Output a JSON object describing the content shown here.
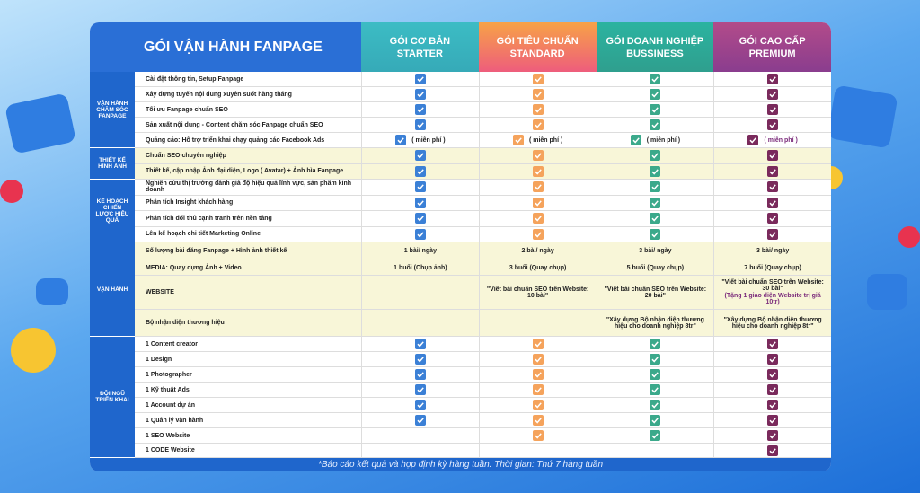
{
  "header": {
    "title": "GÓI VẬN HÀNH FANPAGE",
    "plans": [
      {
        "name": "GÓI CƠ BẢN",
        "sub": "STARTER"
      },
      {
        "name": "GÓI TIÊU CHUẨN",
        "sub": "STANDARD"
      },
      {
        "name": "GÓI DOANH NGHIỆP",
        "sub": "BUSSINESS"
      },
      {
        "name": "GÓI CAO CẤP",
        "sub": "PREMIUM"
      }
    ]
  },
  "groups": [
    {
      "label": "VẬN HÀNH CHĂM SÓC FANPAGE",
      "rows": [
        {
          "label": "Cài đặt thông tin, Setup Fanpage",
          "cells": [
            true,
            true,
            true,
            true
          ]
        },
        {
          "label": "Xây dựng tuyến nội dung xuyên suốt hàng tháng",
          "cells": [
            true,
            true,
            true,
            true
          ]
        },
        {
          "label": "Tối ưu Fanpage chuẩn SEO",
          "cells": [
            true,
            true,
            true,
            true
          ]
        },
        {
          "label": "Sản xuất nội dung - Content chăm sóc Fanpage chuẩn SEO",
          "cells": [
            true,
            true,
            true,
            true
          ]
        },
        {
          "label": "Quảng cáo: Hỗ trợ triển khai chạy quảng cáo Facebook Ads",
          "cells": [
            true,
            true,
            true,
            true
          ],
          "notes": [
            "( miễn phí )",
            "( miễn phí )",
            "( miễn phí )",
            "( miễn phí )"
          ]
        }
      ]
    },
    {
      "label": "THIẾT KẾ HÌNH ẢNH",
      "rows": [
        {
          "label": "Chuẩn SEO chuyên nghiệp",
          "cells": [
            true,
            true,
            true,
            true
          ]
        },
        {
          "label": "Thiết kế, cập nhập Ảnh đại diện, Logo ( Avatar) + Ảnh bìa Fanpage",
          "cells": [
            true,
            true,
            true,
            true
          ]
        }
      ]
    },
    {
      "label": "KẾ HOẠCH CHIẾN LƯỢC HIỆU QUẢ",
      "rows": [
        {
          "label": "Nghiên cứu thị trường đánh giá độ hiệu quả lĩnh vực, sản phẩm kinh doanh",
          "cells": [
            true,
            true,
            true,
            true
          ]
        },
        {
          "label": "Phân tích Insight khách hàng",
          "cells": [
            true,
            true,
            true,
            true
          ]
        },
        {
          "label": "Phân tích đối thủ cạnh tranh trên nền tảng",
          "cells": [
            true,
            true,
            true,
            true
          ]
        },
        {
          "label": "Lên kế hoạch chi tiết Marketing Online",
          "cells": [
            true,
            true,
            true,
            true
          ]
        }
      ]
    },
    {
      "label": "VẬN HÀNH",
      "rows": [
        {
          "label": "Số lượng bài đăng Fanpage + Hình ảnh thiết kế",
          "cells": [
            "1 bài/ ngày",
            "2 bài/ ngày",
            "3 bài/ ngày",
            "3 bài/ ngày"
          ]
        },
        {
          "label": "MEDIA: Quay dựng Ảnh + Video",
          "cells": [
            "1 buổi (Chụp ảnh)",
            "3 buổi (Quay chụp)",
            "5 buổi (Quay chụp)",
            "7 buổi (Quay chụp)"
          ]
        },
        {
          "label": "WEBSITE",
          "cells": [
            null,
            "\"Viết bài chuẩn SEO trên Website: 10 bài\"",
            "\"Viết bài chuẩn SEO trên Website: 20 bài\"",
            "\"Viết bài chuẩn SEO trên Website: 30 bài\""
          ],
          "notes": [
            null,
            null,
            null,
            "(Tặng 1 giao diện Website trị giá 10tr)"
          ]
        },
        {
          "label": "Bộ nhận diện thương hiệu",
          "cells": [
            null,
            null,
            "\"Xây dựng Bộ nhận diện thương hiệu cho doanh nghiệp 8tr\"",
            "\"Xây dựng Bộ nhận diện thương hiệu cho doanh nghiệp 8tr\""
          ]
        }
      ]
    },
    {
      "label": "ĐỘI NGŨ TRIỂN KHAI",
      "rows": [
        {
          "label": "1 Content creator",
          "cells": [
            true,
            true,
            true,
            true
          ]
        },
        {
          "label": "1 Design",
          "cells": [
            true,
            true,
            true,
            true
          ]
        },
        {
          "label": "1 Photographer",
          "cells": [
            true,
            true,
            true,
            true
          ]
        },
        {
          "label": "1 Kỹ thuật Ads",
          "cells": [
            true,
            true,
            true,
            true
          ]
        },
        {
          "label": "1 Account dự án",
          "cells": [
            true,
            true,
            true,
            true
          ]
        },
        {
          "label": "1 Quản lý vận hành",
          "cells": [
            true,
            true,
            true,
            true
          ]
        },
        {
          "label": "1 SEO Website",
          "cells": [
            null,
            true,
            true,
            true
          ]
        },
        {
          "label": "1 CODE Website",
          "cells": [
            null,
            null,
            null,
            true
          ]
        }
      ]
    }
  ],
  "footer": "*Báo cáo kết quả và họp định kỳ hàng tuần. Thời gian: Thứ 7 hàng tuần"
}
